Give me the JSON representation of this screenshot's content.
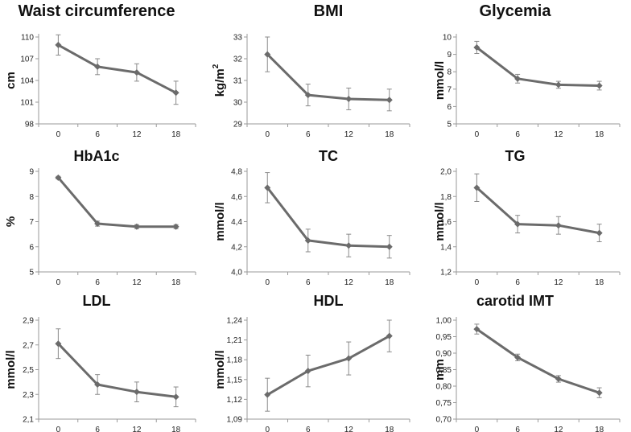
{
  "chart_data": [
    {
      "type": "line",
      "title": "Waist circumference",
      "ylabel": "cm",
      "ylabel_html": "cm",
      "categories": [
        "0",
        "6",
        "12",
        "18"
      ],
      "values": [
        108.9,
        105.9,
        105.1,
        102.3
      ],
      "errors": [
        1.4,
        1.1,
        1.2,
        1.6
      ],
      "ylim": [
        98,
        110
      ],
      "yticks": [
        "98",
        "101",
        "104",
        "107",
        "110"
      ],
      "xlabel": ""
    },
    {
      "type": "line",
      "title": "BMI",
      "ylabel": "kg/m²",
      "ylabel_base": "kg/m",
      "ylabel_sup": "2",
      "categories": [
        "0",
        "6",
        "12",
        "18"
      ],
      "values": [
        32.2,
        30.33,
        30.15,
        30.1
      ],
      "errors": [
        0.8,
        0.5,
        0.5,
        0.5
      ],
      "ylim": [
        29,
        33
      ],
      "yticks": [
        "29",
        "30",
        "31",
        "32",
        "33"
      ],
      "xlabel": ""
    },
    {
      "type": "line",
      "title": "Glycemia",
      "ylabel": "mmol/l",
      "categories": [
        "0",
        "6",
        "12",
        "18"
      ],
      "values": [
        9.4,
        7.6,
        7.25,
        7.2
      ],
      "errors": [
        0.35,
        0.25,
        0.2,
        0.25
      ],
      "ylim": [
        5,
        10
      ],
      "yticks": [
        "5",
        "6",
        "7",
        "8",
        "9",
        "10"
      ],
      "xlabel": ""
    },
    {
      "type": "line",
      "title": "HbA1c",
      "ylabel": "%",
      "categories": [
        "0",
        "6",
        "12",
        "18"
      ],
      "values": [
        8.75,
        6.92,
        6.8,
        6.8
      ],
      "errors": [
        0.05,
        0.1,
        0.08,
        0.08
      ],
      "ylim": [
        5,
        9
      ],
      "yticks": [
        "5",
        "6",
        "7",
        "8",
        "9"
      ],
      "xlabel": ""
    },
    {
      "type": "line",
      "title": "TC",
      "ylabel": "mmol/l",
      "categories": [
        "0",
        "6",
        "12",
        "18"
      ],
      "values": [
        4.67,
        4.25,
        4.21,
        4.2
      ],
      "errors": [
        0.12,
        0.09,
        0.09,
        0.09
      ],
      "ylim": [
        4.0,
        4.8
      ],
      "yticks": [
        "4,0",
        "4,2",
        "4,4",
        "4,6",
        "4,8"
      ],
      "xlabel": ""
    },
    {
      "type": "line",
      "title": "TG",
      "ylabel": "mmol/l",
      "categories": [
        "0",
        "6",
        "12",
        "18"
      ],
      "values": [
        1.87,
        1.58,
        1.57,
        1.51
      ],
      "errors": [
        0.11,
        0.07,
        0.07,
        0.07
      ],
      "ylim": [
        1.2,
        2.0
      ],
      "yticks": [
        "1,2",
        "1,4",
        "1,6",
        "1,8",
        "2,0"
      ],
      "xlabel": ""
    },
    {
      "type": "line",
      "title": "LDL",
      "ylabel": "mmol/l",
      "categories": [
        "0",
        "6",
        "12",
        "18"
      ],
      "values": [
        2.71,
        2.38,
        2.32,
        2.28
      ],
      "errors": [
        0.12,
        0.08,
        0.08,
        0.08
      ],
      "ylim": [
        2.1,
        2.9
      ],
      "yticks": [
        "2,1",
        "2,3",
        "2,5",
        "2,7",
        "2,9"
      ],
      "xlabel": ""
    },
    {
      "type": "line",
      "title": "HDL",
      "ylabel": "mmol/l",
      "categories": [
        "0",
        "6",
        "12",
        "18"
      ],
      "values": [
        1.127,
        1.163,
        1.182,
        1.216
      ],
      "errors": [
        0.025,
        0.024,
        0.025,
        0.024
      ],
      "ylim": [
        1.09,
        1.24
      ],
      "yticks": [
        "1,09",
        "1,12",
        "1,15",
        "1,18",
        "1,21",
        "1,24"
      ],
      "xlabel": ""
    },
    {
      "type": "line",
      "title": "carotid IMT",
      "ylabel": "mm",
      "categories": [
        "0",
        "6",
        "12",
        "18"
      ],
      "values": [
        0.973,
        0.887,
        0.822,
        0.78
      ],
      "errors": [
        0.015,
        0.01,
        0.01,
        0.015
      ],
      "ylim": [
        0.7,
        1.0
      ],
      "yticks": [
        "0,70",
        "0,75",
        "0,80",
        "0,85",
        "0,90",
        "0,95",
        "1,00"
      ],
      "xlabel": ""
    }
  ],
  "colors": {
    "line": "#6b6b6b",
    "marker": "#6b6b6b",
    "axis": "#9a9a9a",
    "error": "#8a8a8a"
  }
}
